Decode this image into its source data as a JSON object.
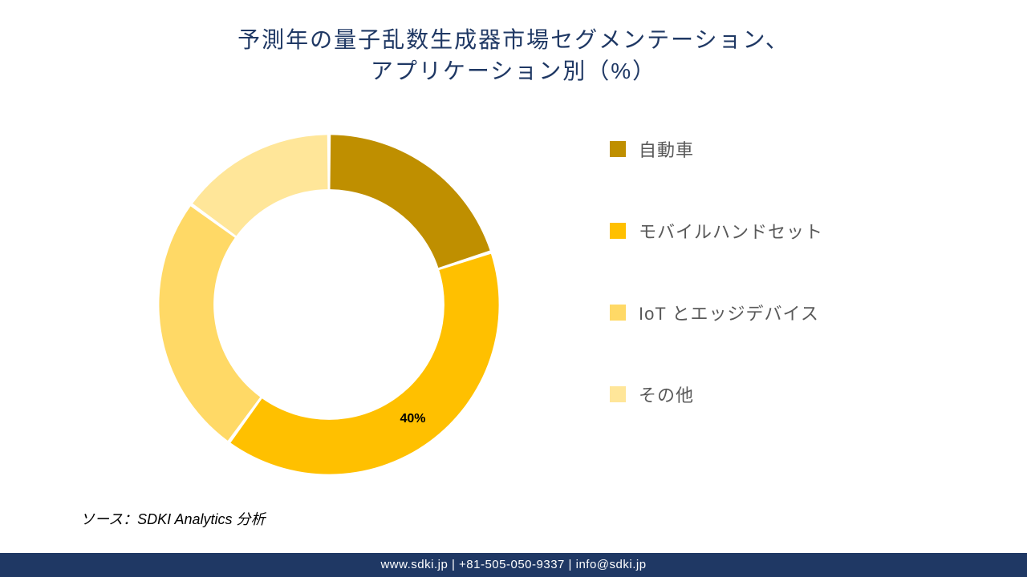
{
  "title_line1": "予測年の量子乱数生成器市場セグメンテーション、",
  "title_line2": "アプリケーション別（%）",
  "title_color": "#1f3864",
  "title_fontsize": 28,
  "chart": {
    "type": "donut",
    "inner_radius_ratio": 0.68,
    "start_angle": 90,
    "gap_deg": 1.2,
    "background_color": "#ffffff",
    "slices": [
      {
        "label": "自動車",
        "value": 20,
        "color": "#bf8f00"
      },
      {
        "label": "モバイルハンドセット",
        "value": 40,
        "color": "#ffc000",
        "show_value": true,
        "value_text": "40%"
      },
      {
        "label": "IoT とエッジデバイス",
        "value": 25,
        "color": "#ffd966"
      },
      {
        "label": "その他",
        "value": 15,
        "color": "#ffe699"
      }
    ]
  },
  "legend": {
    "items": [
      {
        "label": "自動車",
        "color": "#bf8f00"
      },
      {
        "label": "モバイルハンドセット",
        "color": "#ffc000"
      },
      {
        "label": "IoT とエッジデバイス",
        "color": "#ffd966"
      },
      {
        "label": "その他",
        "color": "#ffe699"
      }
    ],
    "label_color": "#595959",
    "label_fontsize": 22
  },
  "source": "ソース：SDKI Analytics 分析",
  "footer": "www.sdki.jp | +81-505-050-9337 | info@sdki.jp",
  "footer_bg": "#1f3864",
  "footer_color": "#ffffff"
}
